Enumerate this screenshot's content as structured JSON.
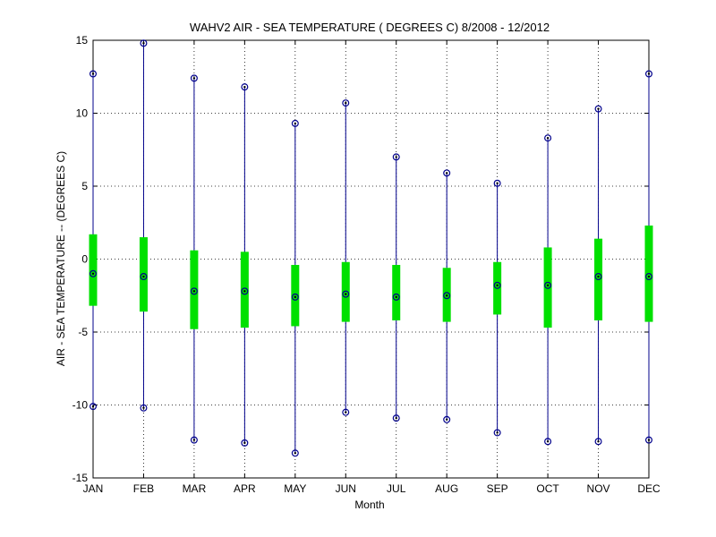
{
  "chart_data": {
    "type": "box",
    "title": "WAHV2  AIR - SEA TEMPERATURE ( DEGREES C) 8/2008 - 12/2012",
    "xlabel": "Month",
    "ylabel": "AIR - SEA TEMPERATURE -- (DEGREES C)",
    "categories": [
      "JAN",
      "FEB",
      "MAR",
      "APR",
      "MAY",
      "JUN",
      "JUL",
      "AUG",
      "SEP",
      "OCT",
      "NOV",
      "DEC"
    ],
    "ylim": [
      -15,
      15
    ],
    "yticks": [
      -15,
      -10,
      -5,
      0,
      5,
      10,
      15
    ],
    "grid": true,
    "colors": {
      "whisker": "#00008b",
      "box": "#00e000",
      "marker": "#000000"
    },
    "series": [
      {
        "max": 12.7,
        "q3": 1.7,
        "median": -1.0,
        "q1": -3.2,
        "min": -10.1
      },
      {
        "max": 14.8,
        "q3": 1.5,
        "median": -1.2,
        "q1": -3.6,
        "min": -10.2
      },
      {
        "max": 12.4,
        "q3": 0.6,
        "median": -2.2,
        "q1": -4.8,
        "min": -12.4
      },
      {
        "max": 11.8,
        "q3": 0.5,
        "median": -2.2,
        "q1": -4.7,
        "min": -12.6
      },
      {
        "max": 9.3,
        "q3": -0.4,
        "median": -2.6,
        "q1": -4.6,
        "min": -13.3
      },
      {
        "max": 10.7,
        "q3": -0.2,
        "median": -2.4,
        "q1": -4.3,
        "min": -10.5
      },
      {
        "max": 7.0,
        "q3": -0.4,
        "median": -2.6,
        "q1": -4.2,
        "min": -10.9
      },
      {
        "max": 5.9,
        "q3": -0.6,
        "median": -2.5,
        "q1": -4.3,
        "min": -11.0
      },
      {
        "max": 5.2,
        "q3": -0.2,
        "median": -1.8,
        "q1": -3.8,
        "min": -11.9
      },
      {
        "max": 8.3,
        "q3": 0.8,
        "median": -1.8,
        "q1": -4.7,
        "min": -12.5
      },
      {
        "max": 10.3,
        "q3": 1.4,
        "median": -1.2,
        "q1": -4.2,
        "min": -12.5
      },
      {
        "max": 12.7,
        "q3": 2.3,
        "median": -1.2,
        "q1": -4.3,
        "min": -12.4
      }
    ]
  }
}
